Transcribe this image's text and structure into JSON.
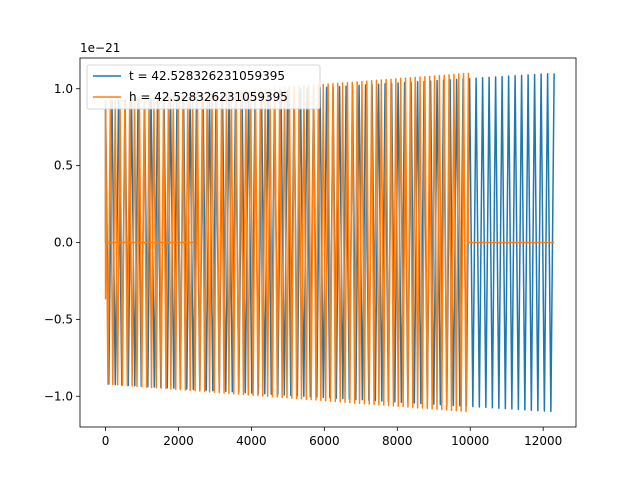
{
  "chart_data": {
    "type": "line",
    "title": "",
    "xlabel": "",
    "ylabel": "",
    "y_offset_label": "1e−21",
    "xlim": [
      -700,
      12900
    ],
    "ylim": [
      -1.2,
      1.2
    ],
    "x_ticks": [
      0,
      2000,
      4000,
      6000,
      8000,
      10000,
      12000
    ],
    "x_tick_labels": [
      "0",
      "2000",
      "4000",
      "6000",
      "8000",
      "10000",
      "12000"
    ],
    "y_ticks": [
      -1.0,
      -0.5,
      0.0,
      0.5,
      1.0
    ],
    "y_tick_labels": [
      "−1.0",
      "−0.5",
      "0.0",
      "0.5",
      "1.0"
    ],
    "grid": false,
    "legend_position": "upper-left",
    "series": [
      {
        "name": "t = 42.528326231059395",
        "color": "#1f77b4",
        "zero_until": 0,
        "x_start": 0,
        "x_end": 12300,
        "cycles": 69,
        "amp_start": 0.92,
        "amp_end": 1.1,
        "start_phase_value": 0.0
      },
      {
        "name": "h = 42.528326231059395",
        "color": "#ff7f0e",
        "x_start": 0,
        "x_end": 9950,
        "cycles": 75,
        "amp_start": 0.92,
        "amp_end": 1.1,
        "start_value": -0.37,
        "tail_zero_until": 12300
      }
    ]
  }
}
